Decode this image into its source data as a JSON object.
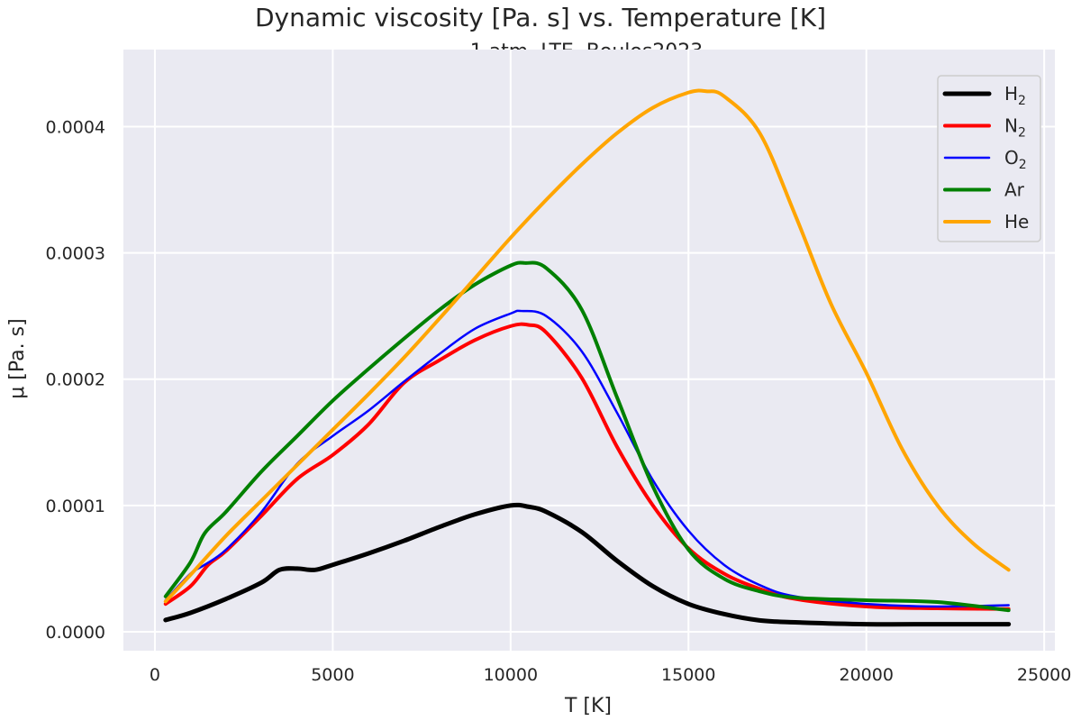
{
  "chart_data": {
    "type": "line",
    "title": "Dynamic viscosity [Pa. s] vs. Temperature [K]",
    "subtitle": "1 atm, LTE, Boulos2023",
    "xlabel": "T [K]",
    "ylabel": "μ [Pa. s]",
    "xlim": [
      -885,
      25300
    ],
    "ylim": [
      -1.5e-05,
      0.000461
    ],
    "xticks": [
      0,
      5000,
      10000,
      15000,
      20000,
      25000
    ],
    "xtick_labels": [
      "0",
      "5000",
      "10000",
      "15000",
      "20000",
      "25000"
    ],
    "yticks": [
      0,
      0.0001,
      0.0002,
      0.0003,
      0.0004
    ],
    "ytick_labels": [
      "0.0000",
      "0.0001",
      "0.0002",
      "0.0003",
      "0.0004"
    ],
    "grid": true,
    "background": "#eaeaf2",
    "legend_position": "top-right",
    "series": [
      {
        "name": "H2",
        "label_main": "H",
        "label_sub": "2",
        "color": "#000000",
        "width": 5,
        "x": [
          300,
          1000,
          2000,
          3000,
          3500,
          4000,
          4500,
          5000,
          6000,
          7000,
          8000,
          9000,
          10000,
          10500,
          11000,
          12000,
          13000,
          14000,
          15000,
          16000,
          17000,
          18000,
          20000,
          22000,
          24000
        ],
        "y": [
          9.3e-06,
          1.5e-05,
          2.6e-05,
          3.9e-05,
          4.9e-05,
          5e-05,
          4.9e-05,
          5.3e-05,
          6.2e-05,
          7.2e-05,
          8.3e-05,
          9.3e-05,
          0.0001,
          9.9e-05,
          9.5e-05,
          7.9e-05,
          5.6e-05,
          3.6e-05,
          2.2e-05,
          1.4e-05,
          9e-06,
          7.5e-06,
          6e-06,
          6e-06,
          6e-06
        ]
      },
      {
        "name": "N2",
        "label_main": "N",
        "label_sub": "2",
        "color": "#ff0000",
        "width": 4,
        "x": [
          300,
          1000,
          1500,
          2000,
          3000,
          4000,
          5000,
          6000,
          7000,
          8000,
          9000,
          10000,
          10500,
          11000,
          12000,
          13000,
          14000,
          15000,
          16000,
          17000,
          18000,
          20000,
          22000,
          24000
        ],
        "y": [
          2.2e-05,
          3.6e-05,
          5.3e-05,
          6.4e-05,
          9.2e-05,
          0.000121,
          0.00014,
          0.000164,
          0.000197,
          0.000215,
          0.000231,
          0.000242,
          0.000243,
          0.000237,
          0.000201,
          0.000146,
          0.0001,
          6.6e-05,
          4.6e-05,
          3.4e-05,
          2.6e-05,
          2e-05,
          1.85e-05,
          1.8e-05
        ]
      },
      {
        "name": "O2",
        "label_main": "O",
        "label_sub": "2",
        "color": "#0000ff",
        "width": 2.5,
        "x": [
          300,
          1000,
          1400,
          2000,
          3000,
          4000,
          5000,
          6000,
          7000,
          8000,
          9000,
          10000,
          10300,
          11000,
          12000,
          13000,
          14000,
          15000,
          16000,
          17000,
          18000,
          20000,
          22000,
          24000
        ],
        "y": [
          2.5e-05,
          4.6e-05,
          5.3e-05,
          6.5e-05,
          9.5e-05,
          0.000133,
          0.000155,
          0.000175,
          0.000198,
          0.00022,
          0.00024,
          0.000252,
          0.000254,
          0.00025,
          0.000222,
          0.000173,
          0.00012,
          8e-05,
          5.3e-05,
          3.7e-05,
          2.8e-05,
          2.2e-05,
          2e-05,
          2.1e-05
        ]
      },
      {
        "name": "Ar",
        "label_main": "Ar",
        "label_sub": "",
        "color": "#008000",
        "width": 4,
        "x": [
          300,
          1000,
          1400,
          2000,
          3000,
          4000,
          5000,
          6000,
          7000,
          8000,
          9000,
          10000,
          10400,
          11000,
          12000,
          13000,
          14000,
          15000,
          16000,
          17000,
          18000,
          20000,
          22000,
          24000
        ],
        "y": [
          2.8e-05,
          5.5e-05,
          7.8e-05,
          9.5e-05,
          0.000127,
          0.000155,
          0.000183,
          0.000208,
          0.000232,
          0.000255,
          0.000275,
          0.00029,
          0.000292,
          0.000288,
          0.000255,
          0.000185,
          0.000115,
          6.5e-05,
          4.2e-05,
          3.2e-05,
          2.7e-05,
          2.5e-05,
          2.35e-05,
          1.7e-05
        ]
      },
      {
        "name": "He",
        "label_main": "He",
        "label_sub": "",
        "color": "#ffa500",
        "width": 4,
        "x": [
          300,
          1000,
          2000,
          3000,
          4000,
          5000,
          6000,
          7000,
          8000,
          9000,
          10000,
          11000,
          12000,
          13000,
          14000,
          15000,
          15500,
          16000,
          17000,
          18000,
          19000,
          20000,
          21000,
          22000,
          23000,
          24000
        ],
        "y": [
          2.4e-05,
          4.5e-05,
          7.6e-05,
          0.000104,
          0.000132,
          0.00016,
          0.000188,
          0.000217,
          0.000248,
          0.00028,
          0.000312,
          0.000342,
          0.00037,
          0.000395,
          0.000415,
          0.000427,
          0.000428,
          0.000424,
          0.000395,
          0.00033,
          0.00026,
          0.000205,
          0.000145,
          0.0001,
          7e-05,
          4.9e-05
        ]
      }
    ]
  }
}
